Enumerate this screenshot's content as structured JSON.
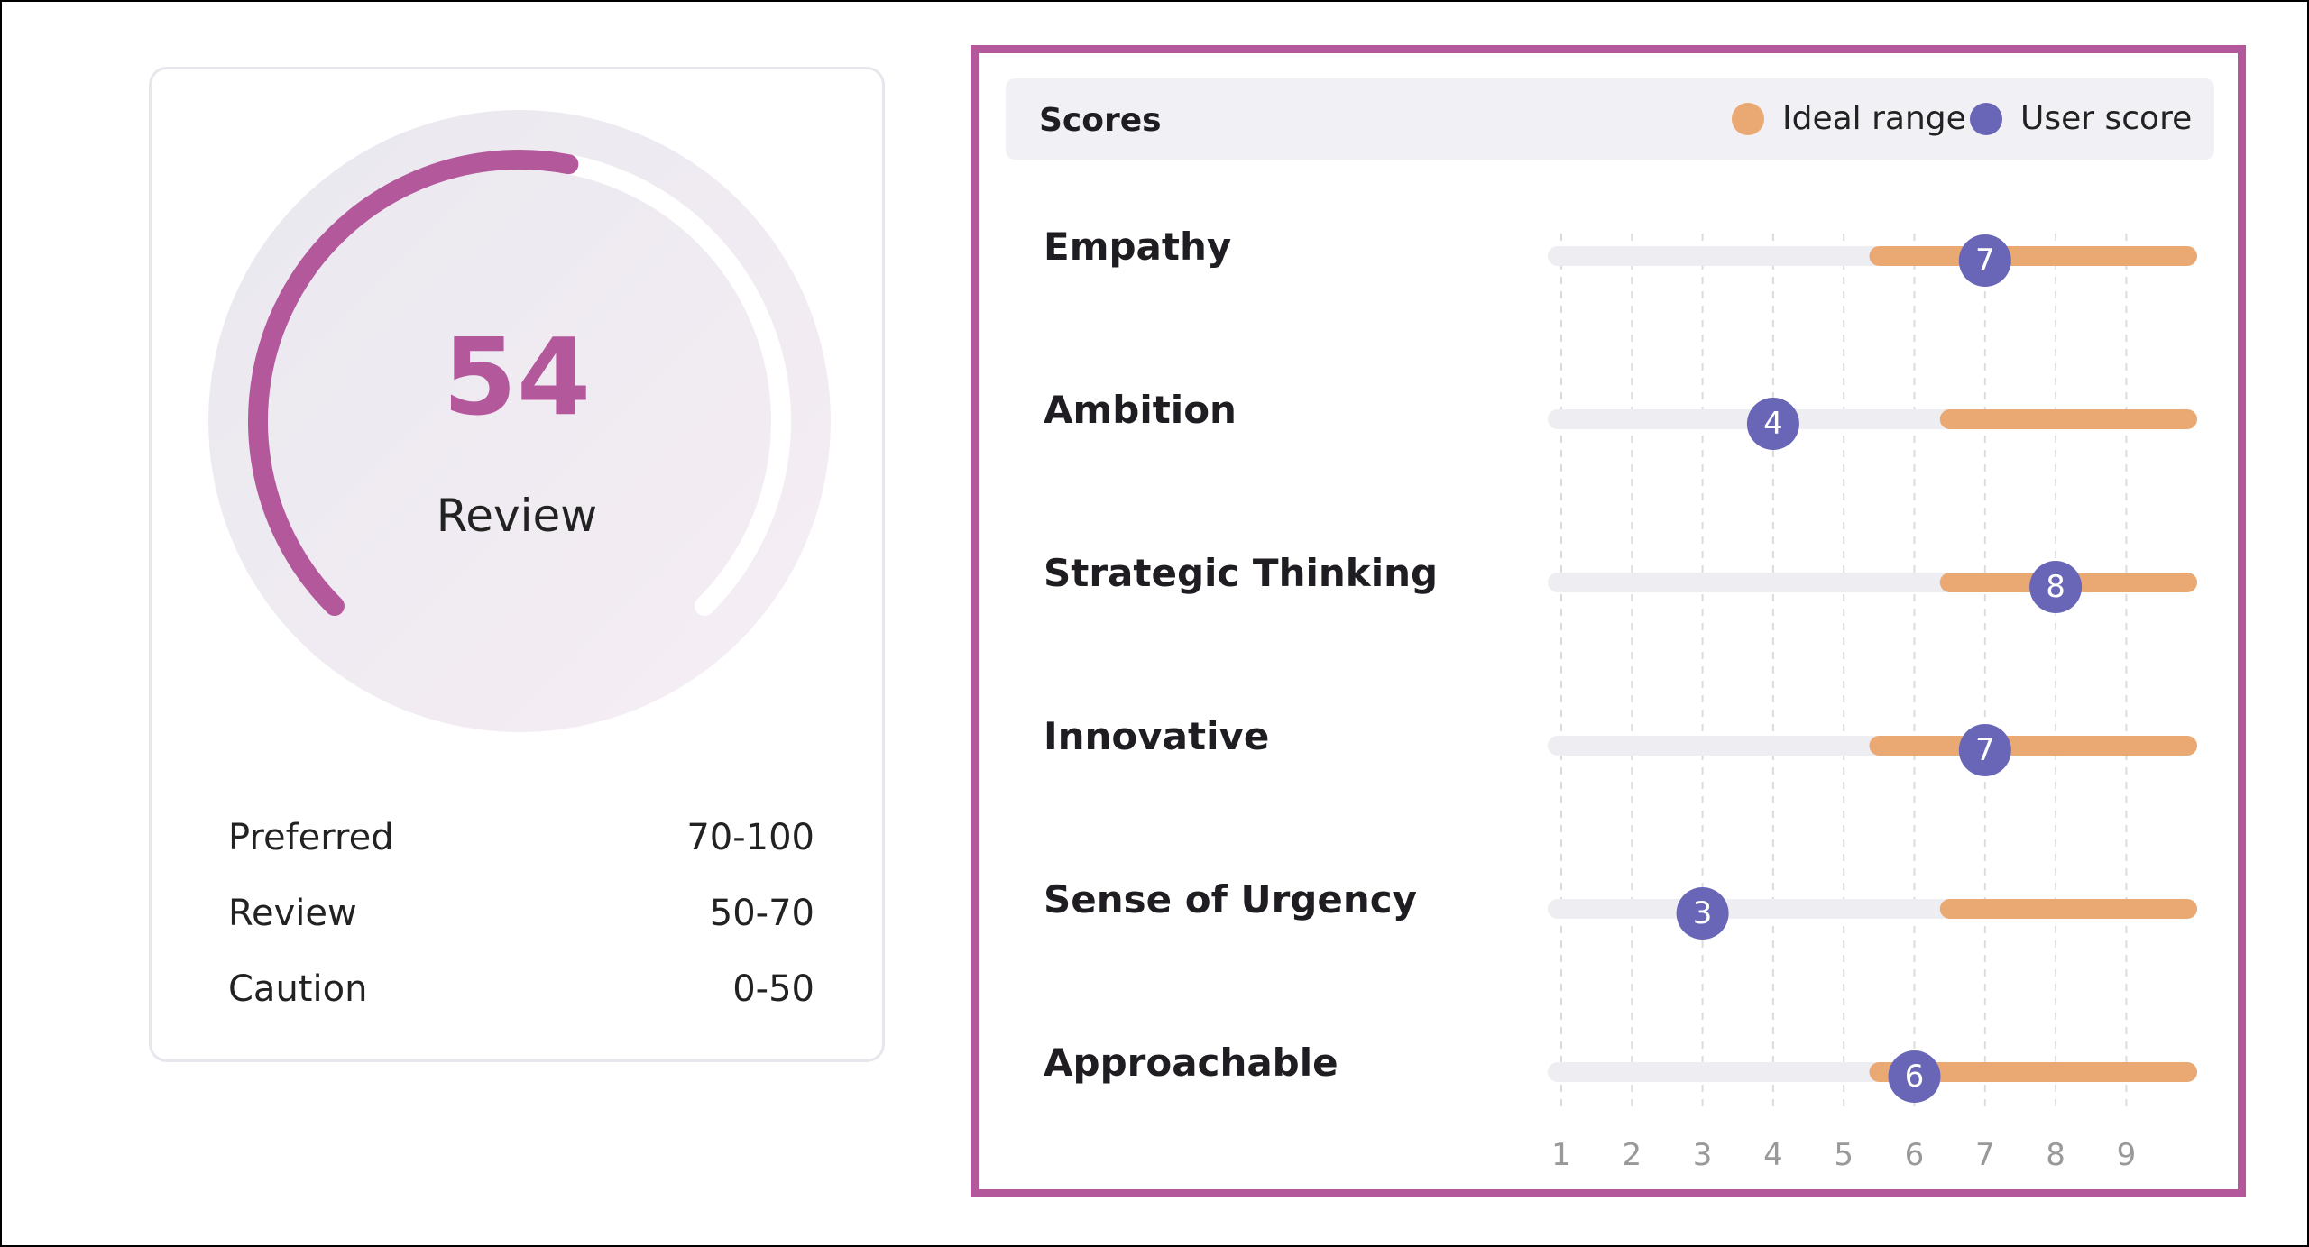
{
  "gauge": {
    "value": "54",
    "status": "Review",
    "max": 100,
    "accent_color": "#b4589c",
    "ranges": [
      {
        "label": "Preferred",
        "range": "70-100"
      },
      {
        "label": "Review",
        "range": "50-70"
      },
      {
        "label": "Caution",
        "range": "0-50"
      }
    ]
  },
  "scores": {
    "title": "Scores",
    "legend": {
      "ideal": "Ideal range",
      "user": "User score"
    },
    "colors": {
      "ideal": "#eaa973",
      "user": "#6a66b7",
      "panel_border": "#b4589c"
    }
  },
  "chart_data": {
    "type": "range-dot",
    "x": [
      1,
      2,
      3,
      4,
      5,
      6,
      7,
      8,
      9
    ],
    "xlim": [
      1,
      9
    ],
    "series": [
      {
        "name": "Ideal range",
        "color": "#eaa973"
      },
      {
        "name": "User score",
        "color": "#6a66b7"
      }
    ],
    "rows": [
      {
        "label": "Empathy",
        "ideal": [
          6,
          9
        ],
        "score": 7
      },
      {
        "label": "Ambition",
        "ideal": [
          7,
          9
        ],
        "score": 4
      },
      {
        "label": "Strategic Thinking",
        "ideal": [
          7,
          9
        ],
        "score": 8
      },
      {
        "label": "Innovative",
        "ideal": [
          6,
          9
        ],
        "score": 7
      },
      {
        "label": "Sense of Urgency",
        "ideal": [
          7,
          9
        ],
        "score": 3
      },
      {
        "label": "Approachable",
        "ideal": [
          6,
          9
        ],
        "score": 6
      }
    ]
  }
}
